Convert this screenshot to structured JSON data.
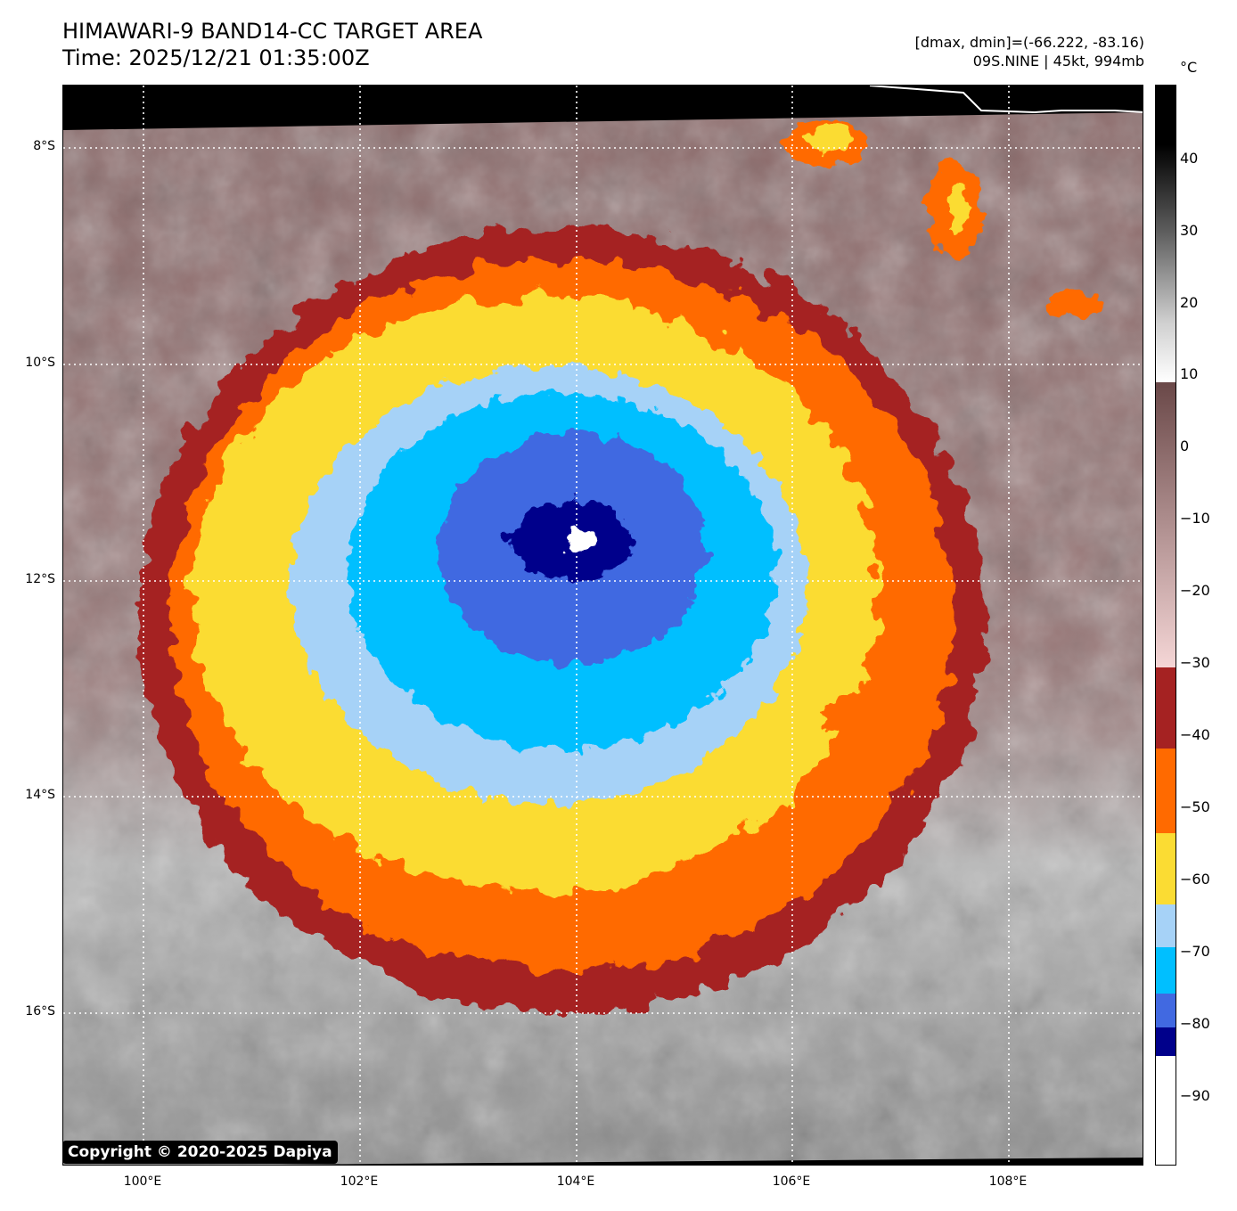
{
  "header": {
    "title_line1": "HIMAWARI-9 BAND14-CC TARGET AREA",
    "title_line2": "Time: 2025/12/21 01:35:00Z",
    "meta_line1": "[dmax, dmin]=(-66.222, -83.16)",
    "meta_line2": "09S.NINE | 45kt, 994mb"
  },
  "map": {
    "copyright": "Copyright © 2020-2025 Dapiya",
    "lat_labels": [
      "8°S",
      "10°S",
      "12°S",
      "14°S",
      "16°S"
    ],
    "lon_labels": [
      "100°E",
      "102°E",
      "104°E",
      "106°E",
      "108°E"
    ]
  },
  "colorbar": {
    "unit": "°C",
    "ticks": [
      "40",
      "30",
      "20",
      "10",
      "0",
      "−10",
      "−20",
      "−30",
      "−40",
      "−50",
      "−60",
      "−70",
      "−80",
      "−90"
    ],
    "colors": {
      "dark_navy": "#00008b",
      "royal_blue": "#4169e1",
      "deep_sky_blue": "#00bfff",
      "light_sky_blue": "#a6d2f7",
      "gold": "#fbdc33",
      "orange": "#ff6a00",
      "brick_red": "#a52222",
      "pink": "#f5d6d6",
      "mauve_brown": "#7a5050"
    }
  }
}
